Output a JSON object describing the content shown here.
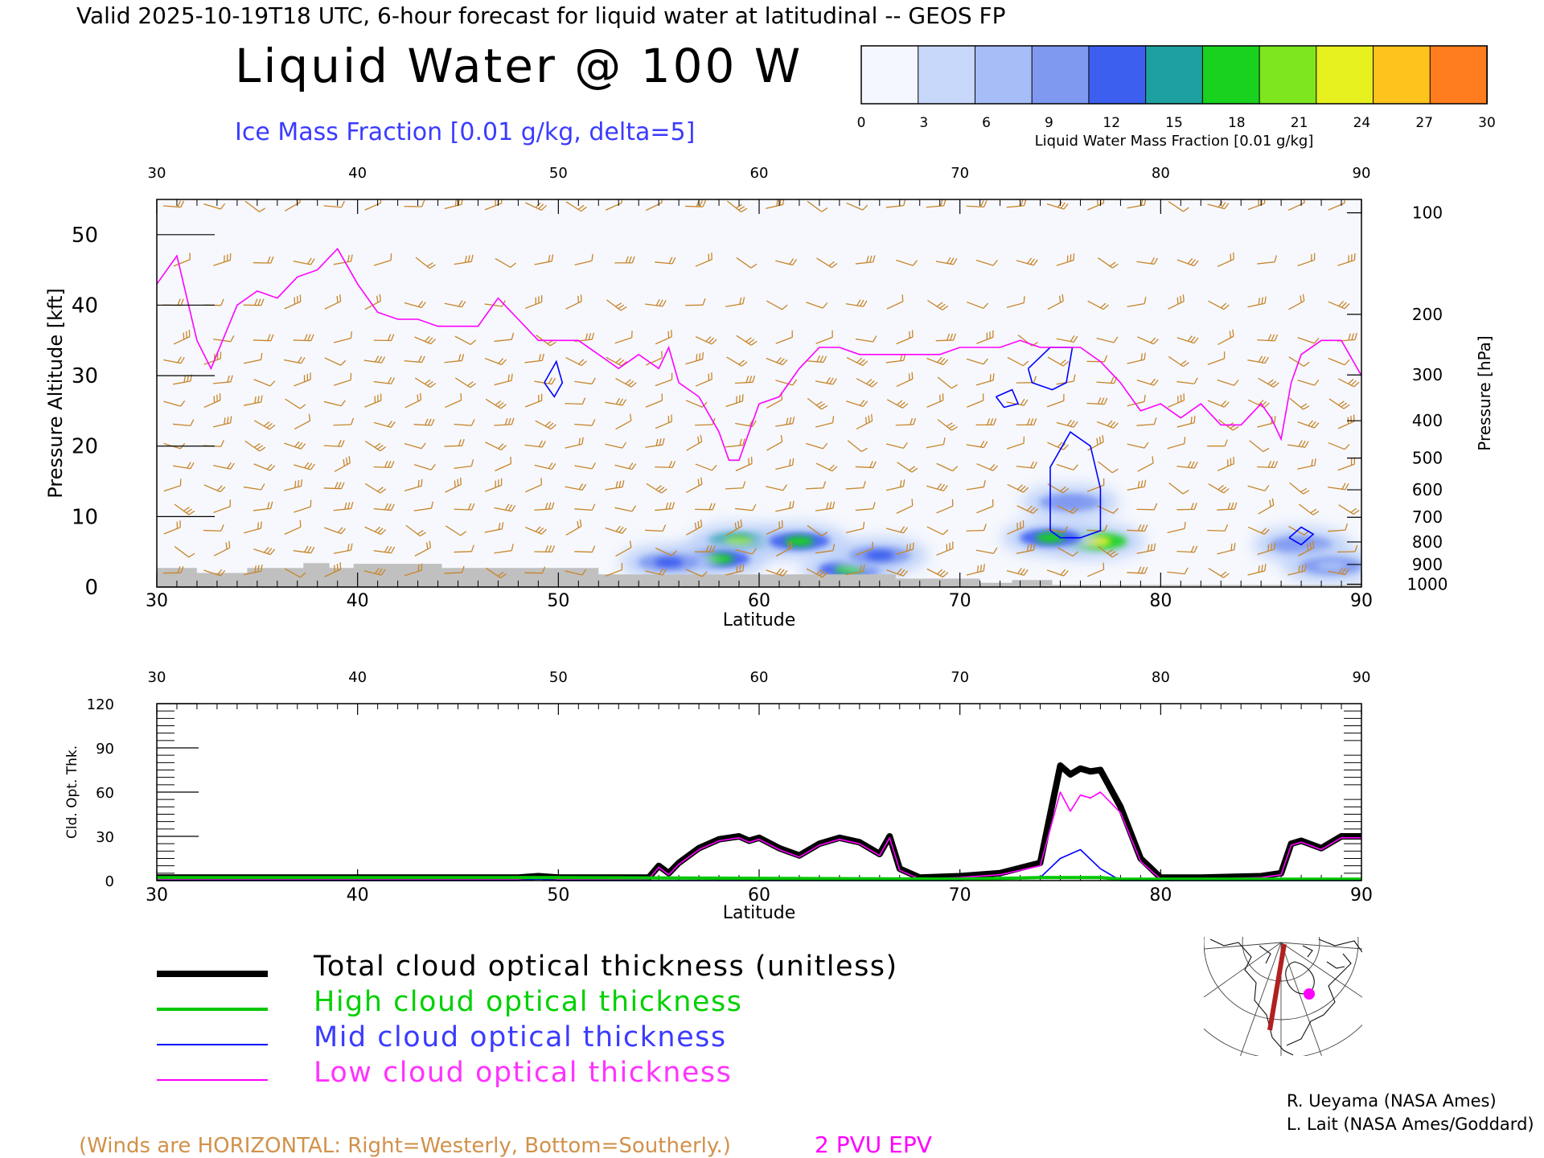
{
  "header": {
    "valid_line": "Valid 2025-10-19T18 UTC, 6-hour forecast for liquid water at latitudinal -- GEOS FP",
    "title": "Liquid Water @ 100 W",
    "subtitle": "Ice Mass Fraction [0.01 g/kg, delta=5]"
  },
  "colorbar": {
    "ticks": [
      "0",
      "3",
      "6",
      "9",
      "12",
      "15",
      "18",
      "21",
      "24",
      "27",
      "30"
    ],
    "label": "Liquid Water Mass Fraction [0.01 g/kg]",
    "colors": [
      "#f4f7ff",
      "#c8d8fb",
      "#a6bdf7",
      "#7f99f1",
      "#3d5ff0",
      "#1ea0a0",
      "#18d21e",
      "#7ee61e",
      "#e6f01e",
      "#ffc31e",
      "#ff7d1e"
    ]
  },
  "chart_data": [
    {
      "type": "heatmap",
      "title": "Liquid Water @ 100 W",
      "xlabel": "Latitude",
      "ylabel": "Pressure Altitude [kft]",
      "ylabel_right": "Pressure [hPa]",
      "xlim": [
        30,
        90
      ],
      "ylim": [
        0,
        55
      ],
      "x_ticks": [
        "30",
        "40",
        "50",
        "60",
        "70",
        "80",
        "90"
      ],
      "y_ticks": [
        "0",
        "10",
        "20",
        "30",
        "40",
        "50"
      ],
      "pressure_ticks": [
        "100",
        "200",
        "300",
        "400",
        "500",
        "600",
        "700",
        "800",
        "900",
        "1000"
      ],
      "pressure_tick_kft": [
        53.1,
        38.7,
        30.1,
        23.6,
        18.3,
        13.8,
        9.9,
        6.4,
        3.2,
        0.4
      ],
      "liquid_water_blobs": [
        {
          "lat": 59.0,
          "kft": 6.5,
          "level": 22
        },
        {
          "lat": 62.0,
          "kft": 6.5,
          "level": 20
        },
        {
          "lat": 58.0,
          "kft": 4.0,
          "level": 18
        },
        {
          "lat": 64.5,
          "kft": 2.5,
          "level": 19
        },
        {
          "lat": 66.0,
          "kft": 4.5,
          "level": 12
        },
        {
          "lat": 55.5,
          "kft": 3.5,
          "level": 12
        },
        {
          "lat": 75.5,
          "kft": 12.0,
          "level": 9
        },
        {
          "lat": 76.8,
          "kft": 6.5,
          "level": 24
        },
        {
          "lat": 74.5,
          "kft": 7.0,
          "level": 20
        },
        {
          "lat": 87.0,
          "kft": 6.0,
          "level": 9
        },
        {
          "lat": 88.5,
          "kft": 3.0,
          "level": 8
        }
      ],
      "epv_2pvu_kft": [
        [
          30,
          43
        ],
        [
          31,
          47
        ],
        [
          32,
          35
        ],
        [
          32.7,
          31
        ],
        [
          34,
          40
        ],
        [
          35,
          42
        ],
        [
          36,
          41
        ],
        [
          37,
          44
        ],
        [
          38,
          45
        ],
        [
          39,
          48
        ],
        [
          40,
          43
        ],
        [
          41,
          39
        ],
        [
          42,
          38
        ],
        [
          43,
          38
        ],
        [
          44,
          37
        ],
        [
          45,
          37
        ],
        [
          46,
          37
        ],
        [
          47,
          41
        ],
        [
          48,
          38
        ],
        [
          49,
          35
        ],
        [
          50,
          35
        ],
        [
          51,
          35
        ],
        [
          52,
          33
        ],
        [
          53,
          31
        ],
        [
          54,
          33
        ],
        [
          55,
          31
        ],
        [
          55.5,
          34
        ],
        [
          56,
          29
        ],
        [
          57,
          27
        ],
        [
          58,
          22
        ],
        [
          58.5,
          18
        ],
        [
          59,
          18
        ],
        [
          60,
          26
        ],
        [
          61,
          27
        ],
        [
          62,
          31
        ],
        [
          63,
          34
        ],
        [
          64,
          34
        ],
        [
          65,
          33
        ],
        [
          66,
          33
        ],
        [
          67,
          33
        ],
        [
          68,
          33
        ],
        [
          69,
          33
        ],
        [
          70,
          34
        ],
        [
          71,
          34
        ],
        [
          72,
          34
        ],
        [
          73,
          35
        ],
        [
          74,
          34
        ],
        [
          75,
          34
        ],
        [
          76,
          34
        ],
        [
          77,
          32
        ],
        [
          78,
          29
        ],
        [
          79,
          25
        ],
        [
          80,
          26
        ],
        [
          81,
          24
        ],
        [
          82,
          26
        ],
        [
          83,
          23
        ],
        [
          84,
          23
        ],
        [
          85,
          26
        ],
        [
          85.5,
          24
        ],
        [
          86,
          21
        ],
        [
          86.5,
          29
        ],
        [
          87,
          33
        ],
        [
          88,
          35
        ],
        [
          89,
          35
        ],
        [
          90,
          30
        ]
      ],
      "ice_contours": [
        {
          "id": "ice-a",
          "points": [
            [
              49.3,
              29
            ],
            [
              49.9,
              32
            ],
            [
              50.2,
              29
            ],
            [
              49.8,
              27
            ],
            [
              49.3,
              29
            ]
          ]
        },
        {
          "id": "ice-b",
          "points": [
            [
              73.4,
              31
            ],
            [
              74.5,
              34
            ],
            [
              75.6,
              34
            ],
            [
              75.3,
              29
            ],
            [
              74.6,
              28
            ],
            [
              73.6,
              29
            ],
            [
              73.4,
              31
            ]
          ]
        },
        {
          "id": "ice-c",
          "points": [
            [
              71.8,
              27
            ],
            [
              72.6,
              28
            ],
            [
              72.9,
              26
            ],
            [
              72.2,
              25.5
            ],
            [
              71.8,
              27
            ]
          ]
        },
        {
          "id": "ice-d",
          "points": [
            [
              74.5,
              8
            ],
            [
              74.5,
              17
            ],
            [
              75.5,
              22
            ],
            [
              76.5,
              20
            ],
            [
              77.0,
              14
            ],
            [
              77.0,
              8
            ],
            [
              76.0,
              7
            ],
            [
              75.0,
              7
            ],
            [
              74.5,
              8
            ]
          ]
        },
        {
          "id": "ice-e",
          "points": [
            [
              86.4,
              7
            ],
            [
              87.0,
              8.5
            ],
            [
              87.6,
              7.5
            ],
            [
              87.0,
              6
            ],
            [
              86.4,
              7
            ]
          ]
        }
      ],
      "terrain_kft": [
        [
          30,
          2.7
        ],
        [
          32,
          2
        ],
        [
          34,
          2
        ],
        [
          34.5,
          2.7
        ],
        [
          37,
          2.7
        ],
        [
          37.3,
          3.4
        ],
        [
          38.3,
          3.4
        ],
        [
          38.6,
          2.7
        ],
        [
          39.5,
          2.7
        ],
        [
          39.8,
          3.3
        ],
        [
          44,
          3.3
        ],
        [
          44.2,
          2.7
        ],
        [
          51.7,
          2.7
        ],
        [
          52,
          1.8
        ],
        [
          66.5,
          1.8
        ],
        [
          66.8,
          1.2
        ],
        [
          70.6,
          1.2
        ],
        [
          71,
          0.6
        ],
        [
          72.5,
          0.6
        ],
        [
          72.6,
          1
        ],
        [
          74.5,
          1
        ],
        [
          74.6,
          0.3
        ],
        [
          90,
          0.3
        ]
      ],
      "wind_columns_lat": [
        31,
        33,
        35,
        37,
        39,
        41,
        43,
        45,
        47,
        49,
        51,
        53,
        55,
        57,
        59,
        61,
        63,
        65,
        67,
        69,
        71,
        73,
        75,
        77,
        79,
        81,
        83,
        85,
        87,
        89
      ],
      "wind_levels_kft": [
        54,
        46,
        40,
        35,
        32,
        29,
        26,
        23,
        20,
        17,
        14,
        11,
        8,
        5,
        2
      ]
    },
    {
      "type": "line",
      "xlabel": "Latitude",
      "ylabel": "Cld. Opt. Thk.",
      "xlim": [
        30,
        90
      ],
      "ylim": [
        0,
        120
      ],
      "x_ticks": [
        "30",
        "40",
        "50",
        "60",
        "70",
        "80",
        "90"
      ],
      "y_ticks": [
        "0",
        "30",
        "60",
        "90",
        "120"
      ],
      "series": [
        {
          "name": "Total cloud optical thickness (unitless)",
          "color": "#000000",
          "x": [
            30,
            48,
            49,
            50,
            54.5,
            55,
            55.5,
            56,
            57,
            58,
            59,
            59.5,
            60,
            61,
            62,
            63,
            64,
            65,
            66,
            66.5,
            67,
            68,
            70,
            72,
            74,
            75,
            75.5,
            76,
            76.5,
            77,
            78,
            79,
            80,
            82,
            85,
            86,
            86.5,
            87,
            88,
            89,
            90
          ],
          "values": [
            2,
            2,
            3,
            2,
            2,
            10,
            5,
            12,
            22,
            28,
            30,
            27,
            29,
            22,
            17,
            25,
            29,
            26,
            18,
            30,
            8,
            2,
            3,
            5,
            12,
            78,
            72,
            76,
            74,
            75,
            50,
            15,
            2,
            2,
            3,
            5,
            25,
            27,
            22,
            30,
            30
          ]
        },
        {
          "name": "High cloud optical thickness",
          "color": "#00c800",
          "x": [
            30,
            48,
            50,
            70,
            74,
            75,
            76,
            77,
            78,
            90
          ],
          "values": [
            2,
            2,
            2,
            1,
            2,
            2,
            2,
            2,
            1,
            1
          ]
        },
        {
          "name": "Mid cloud optical thickness",
          "color": "#0000ff",
          "x": [
            30,
            48,
            49,
            50,
            60,
            70,
            74,
            75,
            76,
            77,
            78,
            90
          ],
          "values": [
            0,
            0,
            1,
            0,
            0,
            0,
            2,
            15,
            21,
            8,
            0,
            0
          ]
        },
        {
          "name": "Low cloud optical thickness",
          "color": "#ff00ff",
          "x": [
            30,
            48,
            49,
            50,
            54.5,
            55,
            55.5,
            56,
            57,
            58,
            59,
            59.5,
            60,
            61,
            62,
            63,
            64,
            65,
            66,
            66.5,
            67,
            68,
            70,
            72,
            74,
            75,
            75.5,
            76,
            76.5,
            77,
            78,
            79,
            80,
            82,
            85,
            86,
            86.5,
            87,
            88,
            89,
            90
          ],
          "values": [
            1,
            1,
            2,
            1,
            1,
            9,
            4,
            11,
            21,
            27,
            29,
            26,
            28,
            21,
            16,
            24,
            28,
            25,
            17,
            29,
            7,
            1,
            2,
            4,
            10,
            60,
            47,
            58,
            56,
            60,
            46,
            13,
            1,
            1,
            2,
            4,
            24,
            26,
            21,
            29,
            29
          ]
        }
      ]
    }
  ],
  "legend": {
    "total_label": "Total cloud optical thickness (unitless)",
    "high_label": "High cloud optical thickness",
    "mid_label": "Mid cloud optical thickness",
    "low_label": "Low cloud optical thickness",
    "colors": {
      "total": "#000000",
      "high": "#00c800",
      "mid": "#0000ff",
      "low": "#ff00ff"
    }
  },
  "footer": {
    "winds_note": "(Winds are HORIZONTAL: Right=Westerly, Bottom=Southerly.)",
    "epv_label": "2 PVU EPV",
    "credit_1": "R. Ueyama (NASA Ames)",
    "credit_2": "L. Lait (NASA Ames/Goddard)"
  },
  "colors": {
    "epv": "#ff00ff",
    "ice_contour": "#0000ff",
    "wind_barb": "#c8852a",
    "terrain": "#c0c0c0",
    "title_blue": "#3b3bff",
    "note_orange": "#d2914a"
  },
  "inset_map": {
    "marker_color": "#ff00ff",
    "track_color": "#b02020"
  }
}
